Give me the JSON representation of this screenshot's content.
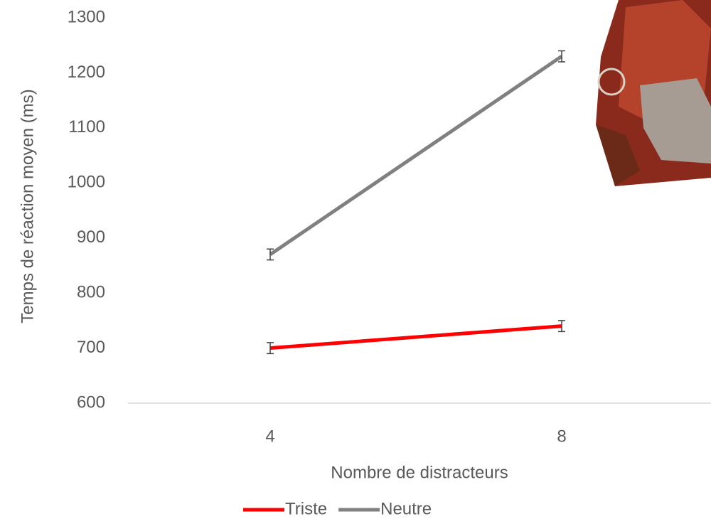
{
  "chart_data": {
    "type": "line",
    "x_label": "Nombre de distracteurs",
    "y_label": "Temps de réaction moyen (ms)",
    "categories": [
      "4",
      "8"
    ],
    "series": [
      {
        "name": "Triste",
        "color": "#ff0000",
        "values": [
          700,
          740
        ],
        "errors": [
          10,
          10
        ]
      },
      {
        "name": "Neutre",
        "color": "#808080",
        "values": [
          870,
          1230
        ],
        "errors": [
          10,
          10
        ]
      }
    ],
    "ylim": [
      600,
      1300
    ],
    "yticks": [
      600,
      700,
      800,
      900,
      1000,
      1100,
      1200,
      1300
    ],
    "grid": false,
    "legend": "bottom"
  }
}
